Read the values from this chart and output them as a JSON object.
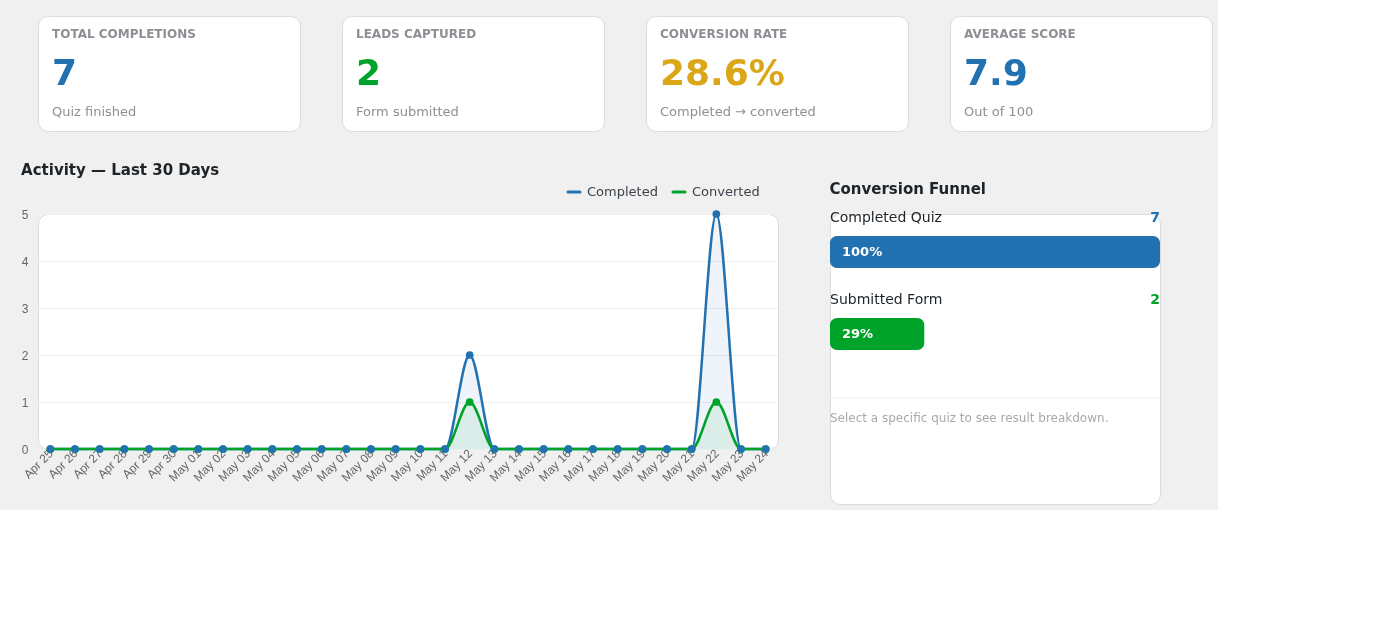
{
  "chart_data": [
    {
      "type": "other",
      "title": "TOTAL COMPLETIONS",
      "annotations": [
        "7",
        "Quiz finished"
      ],
      "colors": [
        "#2271b1"
      ]
    },
    {
      "type": "other",
      "title": "LEADS CAPTURED",
      "annotations": [
        "2",
        "Form submitted"
      ],
      "colors": [
        "#00a32a"
      ]
    },
    {
      "type": "other",
      "title": "CONVERSION RATE",
      "annotations": [
        "28.6%",
        "Completed → converted"
      ],
      "colors": [
        "#dba617"
      ]
    },
    {
      "type": "other",
      "title": "AVERAGE SCORE",
      "annotations": [
        "7.9",
        "Out of 100"
      ],
      "colors": [
        "#2271b1"
      ]
    },
    {
      "type": "area",
      "title": "Activity — Last 30 Days",
      "categories": [
        "Apr 25",
        "Apr 26",
        "Apr 27",
        "Apr 28",
        "Apr 29",
        "Apr 30",
        "May 01",
        "May 02",
        "May 03",
        "May 04",
        "May 05",
        "May 06",
        "May 07",
        "May 08",
        "May 09",
        "May 10",
        "May 11",
        "May 12",
        "May 13",
        "May 14",
        "May 15",
        "May 16",
        "May 17",
        "May 18",
        "May 19",
        "May 20",
        "May 21",
        "May 22",
        "May 23",
        "May 24"
      ],
      "series": [
        {
          "name": "Completed",
          "color": "#2271b1",
          "values": [
            0,
            0,
            0,
            0,
            0,
            0,
            0,
            0,
            0,
            0,
            0,
            0,
            0,
            0,
            0,
            0,
            0,
            2,
            0,
            0,
            0,
            0,
            0,
            0,
            0,
            0,
            0,
            5,
            0,
            0
          ]
        },
        {
          "name": "Converted",
          "color": "#00a32a",
          "values": [
            0,
            0,
            0,
            0,
            0,
            0,
            0,
            0,
            0,
            0,
            0,
            0,
            0,
            0,
            0,
            0,
            0,
            1,
            0,
            0,
            0,
            0,
            0,
            0,
            0,
            0,
            0,
            1,
            0,
            0
          ]
        }
      ],
      "ylim": [
        0,
        5
      ],
      "yticks": [
        0,
        1,
        2,
        3,
        4,
        5
      ],
      "grid": "y",
      "legend": "top right",
      "marker": "circle"
    },
    {
      "type": "bar",
      "orientation": "horizontal",
      "title": "Conversion Funnel",
      "categories": [
        "Completed Quiz",
        "Submitted Form"
      ],
      "values": [
        7,
        2
      ],
      "colors": [
        "#2271b1",
        "#00a32a"
      ],
      "xlim": [
        0,
        7
      ],
      "data_labels": true,
      "annotations": [
        "100%",
        "29%",
        "Select a specific quiz to see result breakdown."
      ]
    }
  ]
}
